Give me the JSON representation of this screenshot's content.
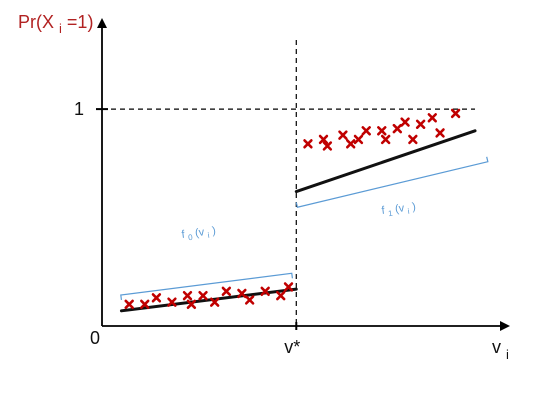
{
  "chart_data": {
    "type": "scatter",
    "title": "",
    "xlabel": {
      "base": "v",
      "subscript": "i"
    },
    "ylabel": {
      "prefix": "Pr(X",
      "subscript": "i",
      "suffix": "=1)"
    },
    "origin_label": "0",
    "y_tick_label": "1",
    "cutoff_label": "v*",
    "segments": [
      {
        "label": {
          "base": "f",
          "subscript": "0",
          "open": "(v",
          "arg_subscript": "i",
          "close": ")"
        },
        "points": [
          [
            0.07,
            0.1
          ],
          [
            0.11,
            0.1
          ],
          [
            0.14,
            0.13
          ],
          [
            0.18,
            0.11
          ],
          [
            0.22,
            0.14
          ],
          [
            0.23,
            0.1
          ],
          [
            0.26,
            0.14
          ],
          [
            0.29,
            0.11
          ],
          [
            0.32,
            0.16
          ],
          [
            0.36,
            0.15
          ],
          [
            0.38,
            0.12
          ],
          [
            0.42,
            0.16
          ],
          [
            0.46,
            0.14
          ],
          [
            0.48,
            0.18
          ]
        ],
        "fit": {
          "x": [
            0.05,
            0.5
          ],
          "y": [
            0.07,
            0.17
          ]
        }
      },
      {
        "label": {
          "base": "f",
          "subscript": "1",
          "open": "(v",
          "arg_subscript": "i",
          "close": ")"
        },
        "points": [
          [
            0.53,
            0.84
          ],
          [
            0.57,
            0.86
          ],
          [
            0.58,
            0.83
          ],
          [
            0.62,
            0.88
          ],
          [
            0.64,
            0.84
          ],
          [
            0.66,
            0.86
          ],
          [
            0.68,
            0.9
          ],
          [
            0.72,
            0.9
          ],
          [
            0.73,
            0.86
          ],
          [
            0.76,
            0.91
          ],
          [
            0.78,
            0.94
          ],
          [
            0.8,
            0.86
          ],
          [
            0.82,
            0.93
          ],
          [
            0.85,
            0.96
          ],
          [
            0.87,
            0.89
          ],
          [
            0.91,
            0.98
          ]
        ],
        "fit": {
          "x": [
            0.5,
            0.96
          ],
          "y": [
            0.62,
            0.9
          ]
        }
      }
    ],
    "xlim": [
      0,
      1.05
    ],
    "ylim": [
      0,
      1.42
    ],
    "cutoff_x": 0.5,
    "y_reference": 1,
    "grid": false,
    "legend": "none"
  },
  "colors": {
    "axis": "#000000",
    "fit_line": "#111111",
    "marker": "#c00000",
    "bracket": "#5b9bd5",
    "ylabel": "#b22222"
  }
}
